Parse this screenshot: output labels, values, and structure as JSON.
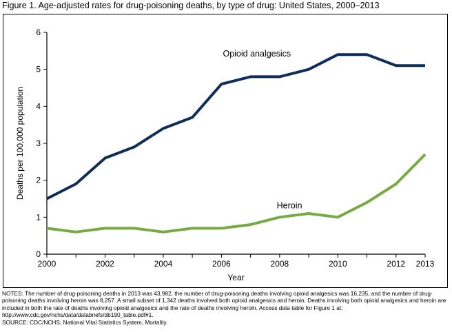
{
  "figure": {
    "title": "Figure 1. Age-adjusted rates for drug-poisoning deaths, by type of drug: United States, 2000–2013"
  },
  "colors": {
    "opioid": "#0e2d5a",
    "heroin": "#76ab40",
    "axis": "#000000"
  },
  "chart_data": {
    "type": "line",
    "title": "Age-adjusted rates for drug-poisoning deaths, by type of drug: United States, 2000–2013",
    "xlabel": "Year",
    "ylabel": "Deaths per 100,000 population",
    "x": [
      2000,
      2001,
      2002,
      2003,
      2004,
      2005,
      2006,
      2007,
      2008,
      2009,
      2010,
      2011,
      2012,
      2013
    ],
    "xticks": [
      2000,
      2002,
      2004,
      2006,
      2008,
      2010,
      2012,
      2013
    ],
    "xtick_labels": [
      "2000",
      "2002",
      "2004",
      "2006",
      "2008",
      "2010",
      "2012",
      "2013"
    ],
    "xlim": [
      2000,
      2013
    ],
    "yticks": [
      0,
      1,
      2,
      3,
      4,
      5,
      6
    ],
    "ytick_labels": [
      "0",
      "1",
      "2",
      "3",
      "4",
      "5",
      "6"
    ],
    "ylim": [
      0,
      6
    ],
    "grid": false,
    "series": [
      {
        "name": "Opioid analgesics",
        "key": "opioid",
        "values": [
          1.5,
          1.9,
          2.6,
          2.9,
          3.4,
          3.7,
          4.6,
          4.8,
          4.8,
          5.0,
          5.4,
          5.4,
          5.1,
          5.1
        ]
      },
      {
        "name": "Heroin",
        "key": "heroin",
        "values": [
          0.7,
          0.6,
          0.7,
          0.7,
          0.6,
          0.7,
          0.7,
          0.8,
          1.0,
          1.1,
          1.0,
          1.4,
          1.9,
          2.7
        ]
      }
    ]
  },
  "notes": {
    "text": "NOTES: The number of drug-poisoning deaths in 2013 was 43,982, the number of drug-poisoning deaths involving opioid analgesics was 16,235, and the number of drug-poisoning deaths involving heroin was 8,257. A small subset of 1,342 deaths involved both opioid analgesics and heroin. Deaths involving both opioid analgesics and heroin are included in both the rate of deaths involving opioid analgesics and the rate of deaths involving heroin. Access data table for Figure 1 at: http://www.cdc.gov/nchs/data/databriefs/db190_table.pdf#1.",
    "source": "SOURCE: CDC/NCHS, National Vital Statistics System, Mortality."
  }
}
